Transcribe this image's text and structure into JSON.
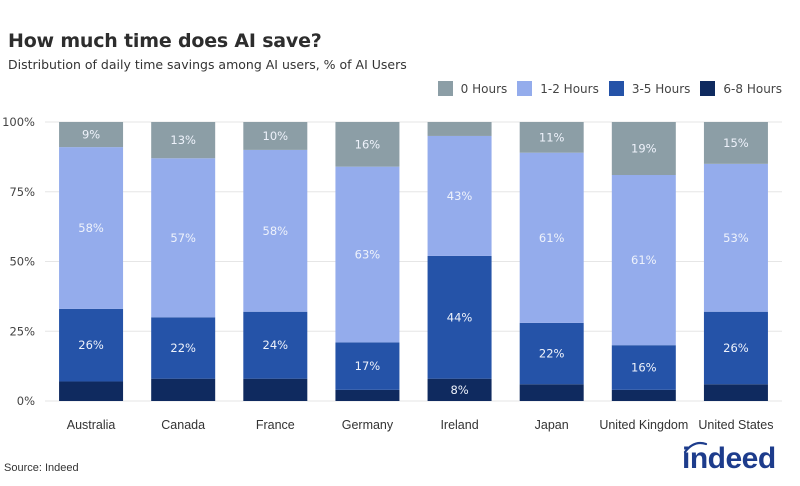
{
  "header": {
    "title": "How much time does AI save?",
    "subtitle": "Distribution of daily time savings among AI users, % of AI Users"
  },
  "footer": {
    "source": "Source: Indeed",
    "logo_text": "indeed"
  },
  "chart_data": {
    "type": "bar",
    "stacked": true,
    "title": "How much time does AI save?",
    "subtitle": "Distribution of daily time savings among AI users, % of AI Users",
    "xlabel": "",
    "ylabel": "",
    "ylim": [
      0,
      100
    ],
    "yticks": [
      0,
      25,
      50,
      75,
      100
    ],
    "ytick_labels": [
      "0%",
      "25%",
      "50%",
      "75%",
      "100%"
    ],
    "grid": true,
    "legend_position": "top-right",
    "categories": [
      "Australia",
      "Canada",
      "France",
      "Germany",
      "Ireland",
      "Japan",
      "United Kingdom",
      "United States"
    ],
    "series": [
      {
        "name": "6-8 Hours",
        "color": "#0f2a5f",
        "values": [
          7,
          8,
          8,
          4,
          8,
          6,
          4,
          6
        ],
        "labels": [
          "",
          "",
          "",
          "",
          "8%",
          "",
          "",
          ""
        ]
      },
      {
        "name": "3-5 Hours",
        "color": "#2553a8",
        "values": [
          26,
          22,
          24,
          17,
          44,
          22,
          16,
          26
        ],
        "labels": [
          "26%",
          "22%",
          "24%",
          "17%",
          "44%",
          "22%",
          "16%",
          "26%"
        ]
      },
      {
        "name": "1-2 Hours",
        "color": "#94acec",
        "values": [
          58,
          57,
          58,
          63,
          43,
          61,
          61,
          53
        ],
        "labels": [
          "58%",
          "57%",
          "58%",
          "63%",
          "43%",
          "61%",
          "61%",
          "53%"
        ]
      },
      {
        "name": "0 Hours",
        "color": "#8c9ea6",
        "values": [
          9,
          13,
          10,
          16,
          5,
          11,
          19,
          15
        ],
        "labels": [
          "9%",
          "13%",
          "10%",
          "16%",
          "",
          "11%",
          "19%",
          "15%"
        ]
      }
    ],
    "legend": [
      "0 Hours",
      "1-2 Hours",
      "3-5 Hours",
      "6-8 Hours"
    ]
  }
}
